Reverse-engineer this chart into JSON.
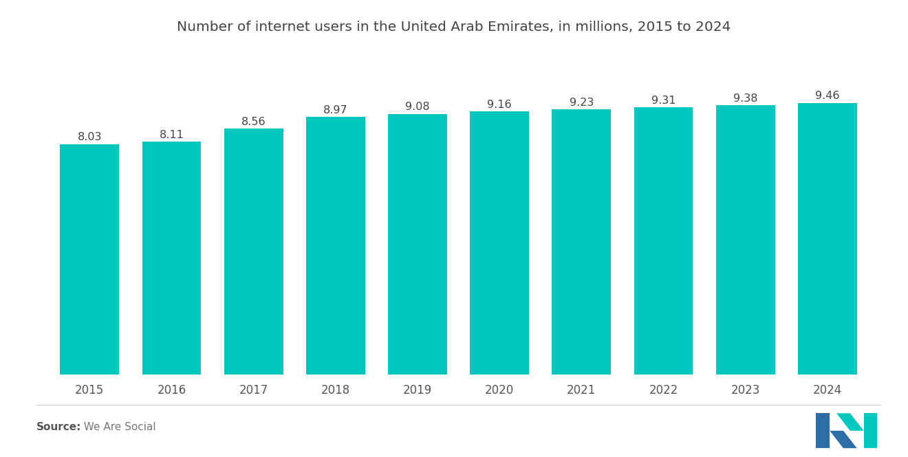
{
  "title": "Number of internet users in the United Arab Emirates, in millions, 2015 to 2024",
  "categories": [
    "2015",
    "2016",
    "2017",
    "2018",
    "2019",
    "2020",
    "2021",
    "2022",
    "2023",
    "2024"
  ],
  "values": [
    8.03,
    8.11,
    8.56,
    8.97,
    9.08,
    9.16,
    9.23,
    9.31,
    9.38,
    9.46
  ],
  "bar_color": "#00C8BE",
  "background_color": "#ffffff",
  "title_color": "#444444",
  "label_color": "#444444",
  "tick_color": "#555555",
  "source_bold": "Source:",
  "source_regular": "  We Are Social",
  "ylim": [
    0,
    10.5
  ],
  "title_fontsize": 14.5,
  "label_fontsize": 11.5,
  "tick_fontsize": 12,
  "source_fontsize": 11,
  "bar_width": 0.72,
  "logo_blue": "#2E6EA6",
  "logo_teal": "#00C8BE"
}
